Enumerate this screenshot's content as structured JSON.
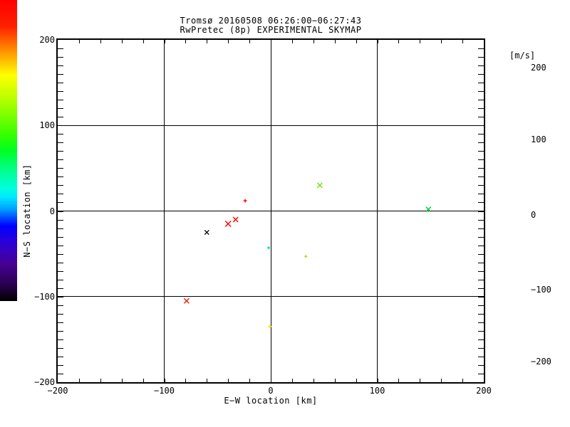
{
  "figure": {
    "title_line1": "Tromsø 20160508 06:26:00−06:27:43",
    "title_line2": "RwPretec (8p) EXPERIMENTAL SKYMAP",
    "background_color": "#FFFFFF",
    "foreground_color": "#000000"
  },
  "axes": {
    "x": {
      "title": "E−W location [km]",
      "min": -200,
      "max": 200,
      "tick_values": [
        -200,
        -100,
        0,
        100,
        200
      ],
      "tick_labels": [
        "−200",
        "−100",
        "0",
        "100",
        "200"
      ],
      "minor_step": 20
    },
    "y": {
      "title": "N−S location [km]",
      "min": -200,
      "max": 200,
      "tick_values": [
        200,
        100,
        0,
        -100,
        -200
      ],
      "tick_labels": [
        "200",
        "100",
        "0",
        "−100",
        "−200"
      ],
      "minor_step": 10
    },
    "grid": true
  },
  "colorbar": {
    "unit": "[m/s]",
    "min": -200,
    "max": 200,
    "tick_values": [
      200,
      100,
      0,
      -100,
      -200
    ],
    "tick_labels": [
      "200",
      "100",
      "0",
      "−100",
      "−200"
    ],
    "stops": [
      {
        "value": 200,
        "color": "#FF0000"
      },
      {
        "value": 165,
        "color": "#FF2000"
      },
      {
        "value": 135,
        "color": "#FF8800"
      },
      {
        "value": 110,
        "color": "#FFDD00"
      },
      {
        "value": 100,
        "color": "#FFFF00"
      },
      {
        "value": 70,
        "color": "#BBFF00"
      },
      {
        "value": 45,
        "color": "#77FF00"
      },
      {
        "value": 20,
        "color": "#33FF00"
      },
      {
        "value": 0,
        "color": "#00FF22"
      },
      {
        "value": -25,
        "color": "#00FF88"
      },
      {
        "value": -50,
        "color": "#00FFDD"
      },
      {
        "value": -62,
        "color": "#00E8FF"
      },
      {
        "value": -78,
        "color": "#009FFF"
      },
      {
        "value": -92,
        "color": "#0038FF"
      },
      {
        "value": -100,
        "color": "#0000FF"
      },
      {
        "value": -122,
        "color": "#2B00D8"
      },
      {
        "value": -150,
        "color": "#470095"
      },
      {
        "value": -178,
        "color": "#2A0050"
      },
      {
        "value": -200,
        "color": "#000000"
      }
    ]
  },
  "chart_data": {
    "type": "scatter",
    "title": "Tromsø 20160508 06:26:00−06:27:43 / RwPretec (8p) EXPERIMENTAL SKYMAP",
    "xlabel": "E−W location [km]",
    "ylabel": "N−S location [km]",
    "xlim": [
      -200,
      200
    ],
    "ylim": [
      -200,
      200
    ],
    "grid": true,
    "color_scale": {
      "label": "[m/s]",
      "min": -200,
      "max": 200
    },
    "points": [
      {
        "x": -24,
        "y": 12,
        "marker": "plus",
        "size": 5,
        "color": "#FF0000",
        "velocity_est_mps": 190
      },
      {
        "x": -33,
        "y": -10,
        "marker": "x",
        "size": 7,
        "color": "#FF0000",
        "velocity_est_mps": 190
      },
      {
        "x": -40,
        "y": -15,
        "marker": "x",
        "size": 8,
        "color": "#FF0000",
        "velocity_est_mps": 185
      },
      {
        "x": -60,
        "y": -25,
        "marker": "x",
        "size": 6,
        "color": "#000000",
        "velocity_est_mps": -200
      },
      {
        "x": 46,
        "y": 30,
        "marker": "x",
        "size": 7,
        "color": "#6BE400",
        "velocity_est_mps": 55
      },
      {
        "x": 148,
        "y": 2,
        "marker": "x",
        "size": 7,
        "color": "#00CC33",
        "velocity_est_mps": 10
      },
      {
        "x": -2,
        "y": -43,
        "marker": "plus",
        "size": 4,
        "color": "#00E078",
        "velocity_est_mps": -25
      },
      {
        "x": 33,
        "y": -53,
        "marker": "plus",
        "size": 4,
        "color": "#B0DC00",
        "velocity_est_mps": 75
      },
      {
        "x": -79,
        "y": -105,
        "marker": "x",
        "size": 7,
        "color": "#F01800",
        "velocity_est_mps": 185
      },
      {
        "x": -1,
        "y": -135,
        "marker": "plus",
        "size": 5,
        "color": "#FFE400",
        "velocity_est_mps": 105
      }
    ]
  }
}
